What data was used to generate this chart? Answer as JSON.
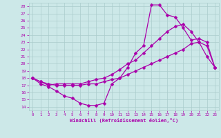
{
  "xlabel": "Windchill (Refroidissement éolien,°C)",
  "xlim": [
    -0.5,
    23.5
  ],
  "ylim": [
    13.5,
    28.5
  ],
  "xticks": [
    0,
    1,
    2,
    3,
    4,
    5,
    6,
    7,
    8,
    9,
    10,
    11,
    12,
    13,
    14,
    15,
    16,
    17,
    18,
    19,
    20,
    21,
    22,
    23
  ],
  "yticks": [
    14,
    15,
    16,
    17,
    18,
    19,
    20,
    21,
    22,
    23,
    24,
    25,
    26,
    27,
    28
  ],
  "line_color": "#aa00aa",
  "bg_color": "#cce8e8",
  "grid_color": "#aacccc",
  "line1_x": [
    0,
    1,
    2,
    3,
    4,
    5,
    6,
    7,
    8,
    9,
    10,
    11,
    12,
    13,
    14,
    15,
    16,
    17,
    18,
    19,
    20,
    21,
    22,
    23
  ],
  "line1_y": [
    18.0,
    17.2,
    16.8,
    16.2,
    15.5,
    15.2,
    14.5,
    14.2,
    14.2,
    14.5,
    17.2,
    18.0,
    19.5,
    21.5,
    22.5,
    28.2,
    28.2,
    26.8,
    26.5,
    25.0,
    23.3,
    23.5,
    23.0,
    19.5
  ],
  "line2_x": [
    0,
    1,
    2,
    3,
    4,
    5,
    6,
    7,
    8,
    9,
    10,
    11,
    12,
    13,
    14,
    15,
    16,
    17,
    18,
    19,
    20,
    21,
    22,
    23
  ],
  "line2_y": [
    18.0,
    17.5,
    17.0,
    17.2,
    17.2,
    17.2,
    17.2,
    17.5,
    17.8,
    18.0,
    18.5,
    19.2,
    20.0,
    20.5,
    21.5,
    22.5,
    23.5,
    24.5,
    25.2,
    25.5,
    24.5,
    23.0,
    21.0,
    19.5
  ],
  "line3_x": [
    0,
    1,
    2,
    3,
    4,
    5,
    6,
    7,
    8,
    9,
    10,
    11,
    12,
    13,
    14,
    15,
    16,
    17,
    18,
    19,
    20,
    21,
    22,
    23
  ],
  "line3_y": [
    18.0,
    17.5,
    17.2,
    17.0,
    17.0,
    17.0,
    17.0,
    17.2,
    17.2,
    17.5,
    17.8,
    18.0,
    18.5,
    19.0,
    19.5,
    20.0,
    20.5,
    21.0,
    21.5,
    22.0,
    22.8,
    23.0,
    22.5,
    19.5
  ]
}
